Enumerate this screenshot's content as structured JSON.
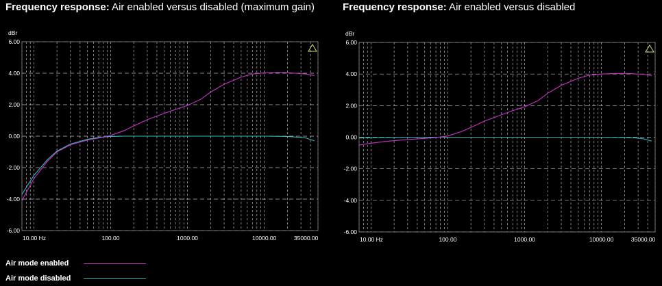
{
  "colors": {
    "enabled": "#cc33cc",
    "disabled": "#33bbbb",
    "grid": "#bbbbbb",
    "background": "#000000"
  },
  "legend": [
    {
      "label": "Air mode enabled",
      "color": "#cc33cc"
    },
    {
      "label": "Air mode disabled",
      "color": "#33bbbb"
    }
  ],
  "chart_data": [
    {
      "type": "line",
      "title_bold": "Frequency response:",
      "title_rest": " Air enabled versus disabled (maximum gain)",
      "ylabel": "dBr",
      "xscale": "log",
      "xlim": [
        7,
        50000
      ],
      "ylim": [
        -6,
        6
      ],
      "y_ticks": [
        "6.00",
        "4.00",
        "2.00",
        "0.00",
        "-2.00",
        "-4.00",
        "-6.00"
      ],
      "x_ticks": [
        {
          "value": 10,
          "label": "10.00 Hz"
        },
        {
          "value": 100,
          "label": "100.00"
        },
        {
          "value": 1000,
          "label": "1000.00"
        },
        {
          "value": 10000,
          "label": "10000.00"
        },
        {
          "value": 35000,
          "label": "35000.00"
        }
      ],
      "grid": true,
      "marker": "warning-triangle",
      "series": [
        {
          "name": "Air mode enabled",
          "color": "#cc33cc",
          "x": [
            7,
            10,
            15,
            20,
            30,
            50,
            70,
            100,
            150,
            200,
            300,
            500,
            700,
            1000,
            1500,
            2000,
            3000,
            5000,
            7000,
            10000,
            15000,
            20000,
            25000,
            35000,
            45000
          ],
          "y": [
            -4.1,
            -2.7,
            -1.6,
            -1.0,
            -0.55,
            -0.25,
            -0.12,
            0.05,
            0.35,
            0.65,
            1.05,
            1.45,
            1.7,
            1.95,
            2.35,
            2.8,
            3.3,
            3.75,
            3.95,
            4.02,
            4.05,
            4.04,
            4.0,
            3.95,
            3.85
          ]
        },
        {
          "name": "Air mode disabled",
          "color": "#33bbbb",
          "x": [
            7,
            10,
            15,
            20,
            30,
            50,
            70,
            100,
            150,
            200,
            500,
            1000,
            5000,
            10000,
            20000,
            30000,
            35000,
            45000
          ],
          "y": [
            -3.7,
            -2.5,
            -1.5,
            -0.95,
            -0.5,
            -0.2,
            -0.08,
            -0.02,
            0,
            0,
            0,
            0,
            0,
            0,
            -0.02,
            -0.08,
            -0.12,
            -0.3
          ]
        }
      ]
    },
    {
      "type": "line",
      "title_bold": "Frequency response:",
      "title_rest": " Air enabled versus disabled",
      "ylabel": "dBr",
      "xscale": "log",
      "xlim": [
        7,
        50000
      ],
      "ylim": [
        -6,
        6
      ],
      "y_ticks": [
        "6.00",
        "4.00",
        "2.00",
        "0.00",
        "-2.00",
        "-4.00",
        "-6.00"
      ],
      "x_ticks": [
        {
          "value": 10,
          "label": "10.00 Hz"
        },
        {
          "value": 100,
          "label": "100.00"
        },
        {
          "value": 1000,
          "label": "1000.00"
        },
        {
          "value": 10000,
          "label": "10000.00"
        },
        {
          "value": 35000,
          "label": "35000.00"
        }
      ],
      "grid": true,
      "marker": "warning-triangle",
      "series": [
        {
          "name": "Air mode enabled",
          "color": "#cc33cc",
          "x": [
            7,
            10,
            15,
            20,
            30,
            50,
            70,
            100,
            150,
            200,
            300,
            500,
            700,
            1000,
            1500,
            2000,
            3000,
            5000,
            7000,
            10000,
            15000,
            20000,
            25000,
            35000,
            45000
          ],
          "y": [
            -0.5,
            -0.38,
            -0.28,
            -0.22,
            -0.15,
            -0.08,
            -0.02,
            0.08,
            0.35,
            0.62,
            1.02,
            1.42,
            1.68,
            1.92,
            2.32,
            2.78,
            3.28,
            3.73,
            3.93,
            4.0,
            4.03,
            4.04,
            4.02,
            3.98,
            3.9
          ]
        },
        {
          "name": "Air mode disabled",
          "color": "#33bbbb",
          "x": [
            7,
            10,
            20,
            50,
            100,
            500,
            1000,
            5000,
            10000,
            20000,
            30000,
            35000,
            45000
          ],
          "y": [
            -0.05,
            -0.03,
            -0.01,
            0,
            0,
            0,
            0,
            0,
            0,
            -0.02,
            -0.06,
            -0.1,
            -0.25
          ]
        }
      ]
    }
  ]
}
